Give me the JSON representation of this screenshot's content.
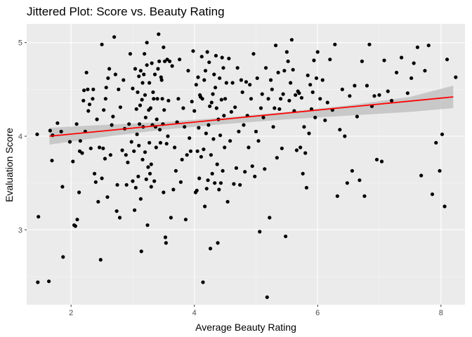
{
  "chart_data": {
    "type": "scatter",
    "title": "Jittered Plot: Score vs. Beauty Rating",
    "xlabel": "Average Beauty Rating",
    "ylabel": "Evaluation Score",
    "xlim": [
      1.28,
      8.39
    ],
    "ylim": [
      2.2,
      5.2
    ],
    "x_ticks": [
      2,
      4,
      6,
      8
    ],
    "y_ticks": [
      3,
      4,
      5
    ],
    "x_tick_labels": [
      "2",
      "4",
      "6",
      "8"
    ],
    "y_tick_labels": [
      "3",
      "4",
      "5"
    ],
    "grid": true,
    "legend": "none",
    "colors": {
      "panel": "#ebebeb",
      "grid_major": "#ffffff",
      "grid_minor": "#f5f5f5",
      "point": "#000000",
      "fit_line": "#ff0000",
      "ribbon": "#bfbfbf"
    },
    "points": [
      [
        1.45,
        4.02
      ],
      [
        1.47,
        3.14
      ],
      [
        1.46,
        2.44
      ],
      [
        1.64,
        2.45
      ],
      [
        1.66,
        4.06
      ],
      [
        1.69,
        3.74
      ],
      [
        1.7,
        4.01
      ],
      [
        1.78,
        4.14
      ],
      [
        1.84,
        4.05
      ],
      [
        1.86,
        3.46
      ],
      [
        1.87,
        2.71
      ],
      [
        1.98,
        3.94
      ],
      [
        2.03,
        3.73
      ],
      [
        2.05,
        3.05
      ],
      [
        2.07,
        3.04
      ],
      [
        2.09,
        4.13
      ],
      [
        2.1,
        3.11
      ],
      [
        2.13,
        3.4
      ],
      [
        2.14,
        3.84
      ],
      [
        2.15,
        3.95
      ],
      [
        2.18,
        3.82
      ],
      [
        2.2,
        4.38
      ],
      [
        2.21,
        4.49
      ],
      [
        2.23,
        4.05
      ],
      [
        2.25,
        4.68
      ],
      [
        2.27,
        4.5
      ],
      [
        2.28,
        4.27
      ],
      [
        2.3,
        4.34
      ],
      [
        2.32,
        3.87
      ],
      [
        2.35,
        4.4
      ],
      [
        2.36,
        4.5
      ],
      [
        2.38,
        3.6
      ],
      [
        2.4,
        3.51
      ],
      [
        2.42,
        4.18
      ],
      [
        2.44,
        3.3
      ],
      [
        2.46,
        3.88
      ],
      [
        2.48,
        2.68
      ],
      [
        2.5,
        4.98
      ],
      [
        2.5,
        3.55
      ],
      [
        2.52,
        3.87
      ],
      [
        2.53,
        4.28
      ],
      [
        2.55,
        3.76
      ],
      [
        2.56,
        4.4
      ],
      [
        2.57,
        4.52
      ],
      [
        2.59,
        3.35
      ],
      [
        2.6,
        4.62
      ],
      [
        2.62,
        4.72
      ],
      [
        2.64,
        3.8
      ],
      [
        2.66,
        4.12
      ],
      [
        2.68,
        4.21
      ],
      [
        2.7,
        5.06
      ],
      [
        2.72,
        4.66
      ],
      [
        2.74,
        3.2
      ],
      [
        2.75,
        3.48
      ],
      [
        2.77,
        4.5
      ],
      [
        2.79,
        3.13
      ],
      [
        2.8,
        4.31
      ],
      [
        2.83,
        3.85
      ],
      [
        2.85,
        4.6
      ],
      [
        2.87,
        4.08
      ],
      [
        2.89,
        3.8
      ],
      [
        2.9,
        3.48
      ],
      [
        2.92,
        3.72
      ],
      [
        2.94,
        4.13
      ],
      [
        2.96,
        4.88
      ],
      [
        2.98,
        3.94
      ],
      [
        3.0,
        3.52
      ],
      [
        3.0,
        4.51
      ],
      [
        3.02,
        3.84
      ],
      [
        3.03,
        3.21
      ],
      [
        3.04,
        4.72
      ],
      [
        3.05,
        3.45
      ],
      [
        3.06,
        4.29
      ],
      [
        3.07,
        4.02
      ],
      [
        3.08,
        4.47
      ],
      [
        3.09,
        3.57
      ],
      [
        3.1,
        4.64
      ],
      [
        3.1,
        3.9
      ],
      [
        3.11,
        4.13
      ],
      [
        3.12,
        4.33
      ],
      [
        3.13,
        4.7
      ],
      [
        3.13,
        3.33
      ],
      [
        3.14,
        2.77
      ],
      [
        3.15,
        4.39
      ],
      [
        3.16,
        4.57
      ],
      [
        3.16,
        3.75
      ],
      [
        3.17,
        4.1
      ],
      [
        3.18,
        4.66
      ],
      [
        3.19,
        4.88
      ],
      [
        3.2,
        3.83
      ],
      [
        3.2,
        4.44
      ],
      [
        3.21,
        4.2
      ],
      [
        3.22,
        3.54
      ],
      [
        3.23,
        5.0
      ],
      [
        3.23,
        4.76
      ],
      [
        3.24,
        3.05
      ],
      [
        3.25,
        3.67
      ],
      [
        3.26,
        4.28
      ],
      [
        3.27,
        4.57
      ],
      [
        3.27,
        3.93
      ],
      [
        3.28,
        3.6
      ],
      [
        3.29,
        4.3
      ],
      [
        3.3,
        3.46
      ],
      [
        3.3,
        3.7
      ],
      [
        3.31,
        4.78
      ],
      [
        3.32,
        4.12
      ],
      [
        3.33,
        4.47
      ],
      [
        3.34,
        4.4
      ],
      [
        3.35,
        3.52
      ],
      [
        3.36,
        4.66
      ],
      [
        3.37,
        4.1
      ],
      [
        3.38,
        3.88
      ],
      [
        3.39,
        4.18
      ],
      [
        3.4,
        4.4
      ],
      [
        3.41,
        4.72
      ],
      [
        3.42,
        5.09
      ],
      [
        3.43,
        4.8
      ],
      [
        3.44,
        4.07
      ],
      [
        3.45,
        3.93
      ],
      [
        3.46,
        4.63
      ],
      [
        3.47,
        4.6
      ],
      [
        3.48,
        4.4
      ],
      [
        3.49,
        4.13
      ],
      [
        3.5,
        4.95
      ],
      [
        3.5,
        3.4
      ],
      [
        3.51,
        4.28
      ],
      [
        3.52,
        4.8
      ],
      [
        3.53,
        2.92
      ],
      [
        3.54,
        2.86
      ],
      [
        3.55,
        3.92
      ],
      [
        3.56,
        4.82
      ],
      [
        3.57,
        4.0
      ],
      [
        3.58,
        4.38
      ],
      [
        3.6,
        4.8
      ],
      [
        3.62,
        3.13
      ],
      [
        3.64,
        4.75
      ],
      [
        3.66,
        3.43
      ],
      [
        3.68,
        3.88
      ],
      [
        3.7,
        3.63
      ],
      [
        3.72,
        4.15
      ],
      [
        3.74,
        4.4
      ],
      [
        3.76,
        4.82
      ],
      [
        3.78,
        3.51
      ],
      [
        3.8,
        3.75
      ],
      [
        3.82,
        4.3
      ],
      [
        3.84,
        4.1
      ],
      [
        3.86,
        3.11
      ],
      [
        3.88,
        3.8
      ],
      [
        3.9,
        4.7
      ],
      [
        3.92,
        3.98
      ],
      [
        3.94,
        3.84
      ],
      [
        3.96,
        4.37
      ],
      [
        3.98,
        4.91
      ],
      [
        4.0,
        4.27
      ],
      [
        4.02,
        3.4
      ],
      [
        4.03,
        4.55
      ],
      [
        4.04,
        3.42
      ],
      [
        4.05,
        3.84
      ],
      [
        4.06,
        4.63
      ],
      [
        4.07,
        4.09
      ],
      [
        4.08,
        3.55
      ],
      [
        4.09,
        4.44
      ],
      [
        4.1,
        4.42
      ],
      [
        4.11,
        3.78
      ],
      [
        4.12,
        4.85
      ],
      [
        4.13,
        4.4
      ],
      [
        4.14,
        2.44
      ],
      [
        4.15,
        3.86
      ],
      [
        4.16,
        4.6
      ],
      [
        4.17,
        3.25
      ],
      [
        4.18,
        4.7
      ],
      [
        4.19,
        4.03
      ],
      [
        4.2,
        3.44
      ],
      [
        4.21,
        4.9
      ],
      [
        4.22,
        3.53
      ],
      [
        4.23,
        4.12
      ],
      [
        4.24,
        4.79
      ],
      [
        4.25,
        4.32
      ],
      [
        4.26,
        2.8
      ],
      [
        4.27,
        3.8
      ],
      [
        4.28,
        4.36
      ],
      [
        4.29,
        3.6
      ],
      [
        4.3,
        4.45
      ],
      [
        4.31,
        3.97
      ],
      [
        4.32,
        4.66
      ],
      [
        4.33,
        3.5
      ],
      [
        4.34,
        4.52
      ],
      [
        4.35,
        4.86
      ],
      [
        4.36,
        4.3
      ],
      [
        4.37,
        3.7
      ],
      [
        4.38,
        2.86
      ],
      [
        4.39,
        4.18
      ],
      [
        4.4,
        3.43
      ],
      [
        4.41,
        4.62
      ],
      [
        4.42,
        4.01
      ],
      [
        4.43,
        3.5
      ],
      [
        4.44,
        4.39
      ],
      [
        4.45,
        4.84
      ],
      [
        4.46,
        3.63
      ],
      [
        4.47,
        4.73
      ],
      [
        4.48,
        4.22
      ],
      [
        4.49,
        3.88
      ],
      [
        4.5,
        4.4
      ],
      [
        4.52,
        4.57
      ],
      [
        4.54,
        3.3
      ],
      [
        4.56,
        4.83
      ],
      [
        4.58,
        3.95
      ],
      [
        4.6,
        4.26
      ],
      [
        4.62,
        4.57
      ],
      [
        4.64,
        3.49
      ],
      [
        4.66,
        4.31
      ],
      [
        4.68,
        3.66
      ],
      [
        4.7,
        4.73
      ],
      [
        4.72,
        4.05
      ],
      [
        4.74,
        3.48
      ],
      [
        4.76,
        4.6
      ],
      [
        4.78,
        4.47
      ],
      [
        4.8,
        4.12
      ],
      [
        4.82,
        3.62
      ],
      [
        4.84,
        4.58
      ],
      [
        4.86,
        4.22
      ],
      [
        4.88,
        3.88
      ],
      [
        4.9,
        4.55
      ],
      [
        4.92,
        4.4
      ],
      [
        4.94,
        3.68
      ],
      [
        4.96,
        4.88
      ],
      [
        4.98,
        3.57
      ],
      [
        5.0,
        4.05
      ],
      [
        5.02,
        4.62
      ],
      [
        5.04,
        3.95
      ],
      [
        5.06,
        2.98
      ],
      [
        5.08,
        4.3
      ],
      [
        5.1,
        4.45
      ],
      [
        5.12,
        4.2
      ],
      [
        5.14,
        3.65
      ],
      [
        5.16,
        4.73
      ],
      [
        5.18,
        2.28
      ],
      [
        5.2,
        4.4
      ],
      [
        5.22,
        3.13
      ],
      [
        5.24,
        4.6
      ],
      [
        5.26,
        4.5
      ],
      [
        5.28,
        4.1
      ],
      [
        5.3,
        4.3
      ],
      [
        5.32,
        4.97
      ],
      [
        5.34,
        3.77
      ],
      [
        5.36,
        4.68
      ],
      [
        5.38,
        4.29
      ],
      [
        5.4,
        4.4
      ],
      [
        5.42,
        3.87
      ],
      [
        5.44,
        4.45
      ],
      [
        5.46,
        4.7
      ],
      [
        5.48,
        2.93
      ],
      [
        5.5,
        4.9
      ],
      [
        5.52,
        4.8
      ],
      [
        5.54,
        4.38
      ],
      [
        5.56,
        4.57
      ],
      [
        5.58,
        5.03
      ],
      [
        5.6,
        4.71
      ],
      [
        5.62,
        4.27
      ],
      [
        5.64,
        4.44
      ],
      [
        5.66,
        3.85
      ],
      [
        5.68,
        4.48
      ],
      [
        5.7,
        4.46
      ],
      [
        5.72,
        3.88
      ],
      [
        5.74,
        4.41
      ],
      [
        5.76,
        3.6
      ],
      [
        5.78,
        4.1
      ],
      [
        5.8,
        3.82
      ],
      [
        5.82,
        3.45
      ],
      [
        5.84,
        4.65
      ],
      [
        5.86,
        4.03
      ],
      [
        5.88,
        4.55
      ],
      [
        5.9,
        4.29
      ],
      [
        5.92,
        4.47
      ],
      [
        5.94,
        4.81
      ],
      [
        5.96,
        4.2
      ],
      [
        5.98,
        4.62
      ],
      [
        6.0,
        4.9
      ],
      [
        6.04,
        4.4
      ],
      [
        6.08,
        4.6
      ],
      [
        6.12,
        4.17
      ],
      [
        6.16,
        4.36
      ],
      [
        6.2,
        4.82
      ],
      [
        6.24,
        4.28
      ],
      [
        6.28,
        4.98
      ],
      [
        6.32,
        3.36
      ],
      [
        6.36,
        4.07
      ],
      [
        6.4,
        4.5
      ],
      [
        6.44,
        4.0
      ],
      [
        6.48,
        3.5
      ],
      [
        6.52,
        4.43
      ],
      [
        6.56,
        3.63
      ],
      [
        6.6,
        4.54
      ],
      [
        6.64,
        4.21
      ],
      [
        6.68,
        3.53
      ],
      [
        6.72,
        4.8
      ],
      [
        6.76,
        3.36
      ],
      [
        6.8,
        4.54
      ],
      [
        6.84,
        4.98
      ],
      [
        6.88,
        4.32
      ],
      [
        6.92,
        4.43
      ],
      [
        6.96,
        3.75
      ],
      [
        7.0,
        4.44
      ],
      [
        7.04,
        3.73
      ],
      [
        7.08,
        4.81
      ],
      [
        7.14,
        4.48
      ],
      [
        7.2,
        4.38
      ],
      [
        7.28,
        4.68
      ],
      [
        7.36,
        4.84
      ],
      [
        7.46,
        4.46
      ],
      [
        7.52,
        4.62
      ],
      [
        7.56,
        4.78
      ],
      [
        7.62,
        4.95
      ],
      [
        7.68,
        3.58
      ],
      [
        7.74,
        4.7
      ],
      [
        7.8,
        4.97
      ],
      [
        7.86,
        3.38
      ],
      [
        7.92,
        3.93
      ],
      [
        7.98,
        3.63
      ],
      [
        8.02,
        4.02
      ],
      [
        8.06,
        3.25
      ],
      [
        8.1,
        4.82
      ],
      [
        8.24,
        4.63
      ]
    ],
    "fit_line": [
      [
        1.65,
        4.0
      ],
      [
        8.2,
        4.42
      ]
    ],
    "ribbon": {
      "x": [
        1.65,
        2.5,
        3.5,
        4.5,
        5.5,
        6.5,
        7.5,
        8.2
      ],
      "lower": [
        3.91,
        3.99,
        4.07,
        4.13,
        4.18,
        4.22,
        4.26,
        4.3
      ],
      "upper": [
        4.09,
        4.12,
        4.15,
        4.2,
        4.26,
        4.33,
        4.42,
        4.54
      ]
    }
  }
}
